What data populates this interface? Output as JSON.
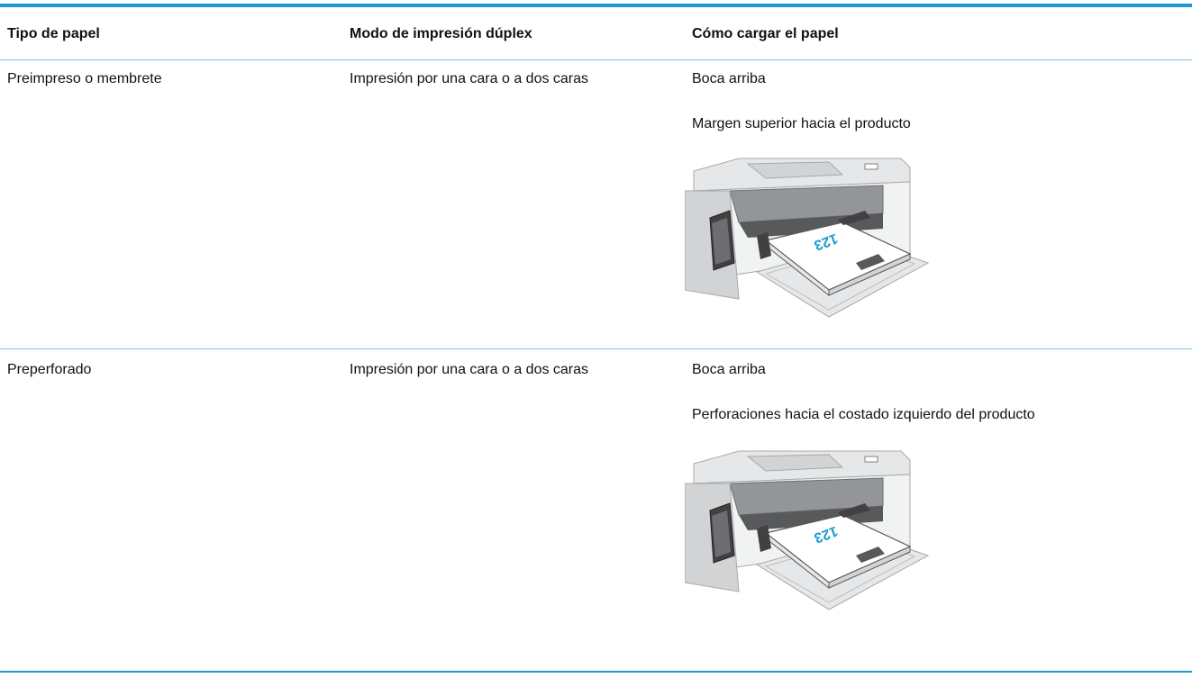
{
  "table": {
    "header": [
      "Tipo de papel",
      "Modo de impresión dúplex",
      "Cómo cargar el papel"
    ],
    "rows": [
      {
        "paper": "Preimpreso o membrete",
        "duplex": "Impresión por una cara o a dos caras",
        "loading": [
          "Boca arriba",
          "Margen superior hacia el producto"
        ],
        "image_label": "123"
      },
      {
        "paper": "Preperforado",
        "duplex": "Impresión por una cara o a dos caras",
        "loading": [
          "Boca arriba",
          "Perforaciones hacia el costado izquierdo del producto"
        ],
        "image_label": "123"
      }
    ]
  }
}
